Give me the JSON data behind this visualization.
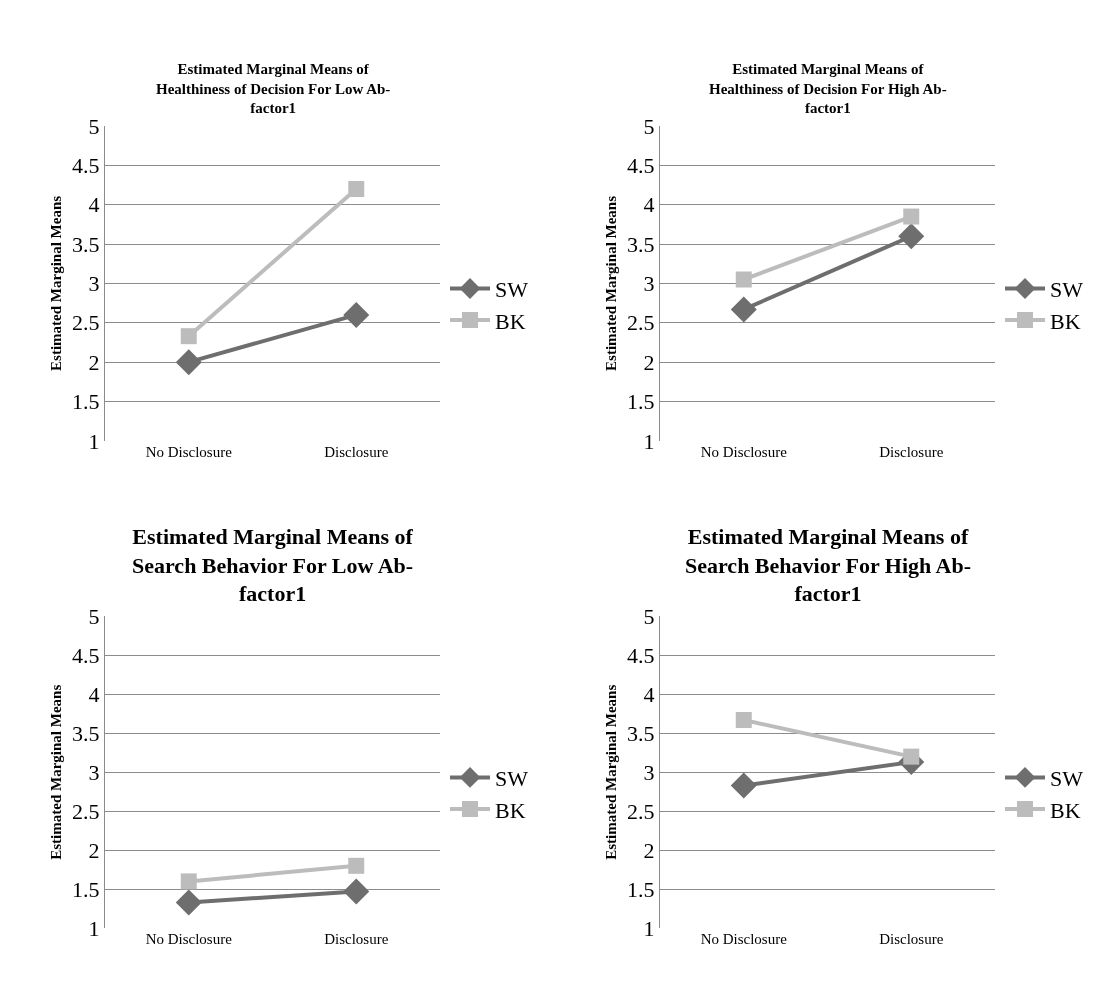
{
  "chart_data": [
    {
      "type": "line",
      "title": "Estimated Marginal Means of Healthiness of Decision For Low Ab-factor1",
      "ylabel": "Estimated Marginal Means",
      "categories": [
        "No Disclosure",
        "Disclosure"
      ],
      "ylim": [
        1,
        5
      ],
      "yticks": [
        1,
        1.5,
        2,
        2.5,
        3,
        3.5,
        4,
        4.5,
        5
      ],
      "grid": "y",
      "legend": "right",
      "series": [
        {
          "name": "SW",
          "color": "#6e6e6e",
          "marker": "diamond",
          "values": [
            2.0,
            2.6
          ]
        },
        {
          "name": "BK",
          "color": "#bcbcbc",
          "marker": "square",
          "values": [
            2.33,
            4.2
          ]
        }
      ]
    },
    {
      "type": "line",
      "title": "Estimated Marginal Means of Healthiness of Decision For High Ab-factor1",
      "ylabel": "Estimated Marginal Means",
      "categories": [
        "No Disclosure",
        "Disclosure"
      ],
      "ylim": [
        1,
        5
      ],
      "yticks": [
        1,
        1.5,
        2,
        2.5,
        3,
        3.5,
        4,
        4.5,
        5
      ],
      "grid": "y",
      "legend": "right",
      "series": [
        {
          "name": "SW",
          "color": "#6e6e6e",
          "marker": "diamond",
          "values": [
            2.67,
            3.6
          ]
        },
        {
          "name": "BK",
          "color": "#bcbcbc",
          "marker": "square",
          "values": [
            3.05,
            3.85
          ]
        }
      ]
    },
    {
      "type": "line",
      "title": "Estimated Marginal Means of Search Behavior For Low Ab-factor1",
      "ylabel": "Estimated Marginal Means",
      "categories": [
        "No Disclosure",
        "Disclosure"
      ],
      "ylim": [
        1,
        5
      ],
      "yticks": [
        1,
        1.5,
        2,
        2.5,
        3,
        3.5,
        4,
        4.5,
        5
      ],
      "grid": "y",
      "legend": "right",
      "series": [
        {
          "name": "SW",
          "color": "#6e6e6e",
          "marker": "diamond",
          "values": [
            1.33,
            1.47
          ]
        },
        {
          "name": "BK",
          "color": "#bcbcbc",
          "marker": "square",
          "values": [
            1.6,
            1.8
          ]
        }
      ]
    },
    {
      "type": "line",
      "title": "Estimated Marginal Means of Search Behavior For High Ab-factor1",
      "ylabel": "Estimated Marginal Means",
      "categories": [
        "No Disclosure",
        "Disclosure"
      ],
      "ylim": [
        1,
        5
      ],
      "yticks": [
        1,
        1.5,
        2,
        2.5,
        3,
        3.5,
        4,
        4.5,
        5
      ],
      "grid": "y",
      "legend": "right",
      "series": [
        {
          "name": "SW",
          "color": "#6e6e6e",
          "marker": "diamond",
          "values": [
            2.83,
            3.13
          ]
        },
        {
          "name": "BK",
          "color": "#bcbcbc",
          "marker": "square",
          "values": [
            3.67,
            3.2
          ]
        }
      ]
    }
  ]
}
